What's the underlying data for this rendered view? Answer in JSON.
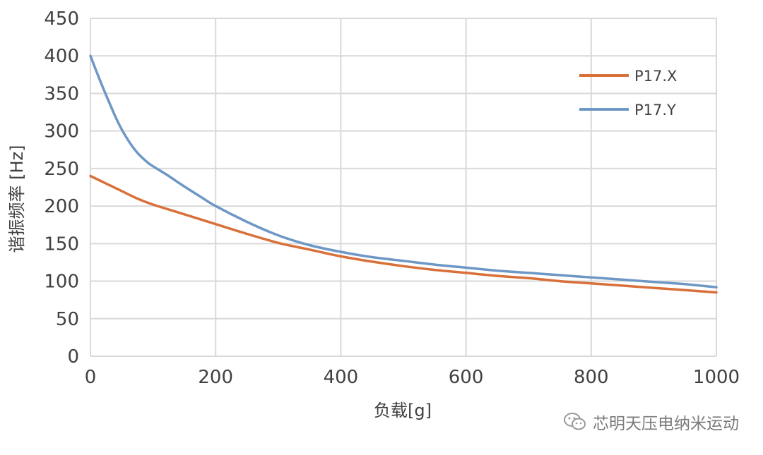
{
  "chart_data": {
    "type": "line",
    "xlabel": "负载[g]",
    "ylabel": "谐振频率 [Hz]",
    "xlim": [
      0,
      1000
    ],
    "ylim": [
      0,
      450
    ],
    "xticks": [
      0,
      200,
      400,
      600,
      800,
      1000
    ],
    "yticks": [
      0,
      50,
      100,
      150,
      200,
      250,
      300,
      350,
      400,
      450
    ],
    "grid": true,
    "legend_position": "top-right",
    "series": [
      {
        "name": "P17.X",
        "color": "#d9703a",
        "points": [
          [
            0,
            240
          ],
          [
            25,
            230
          ],
          [
            50,
            220
          ],
          [
            75,
            210
          ],
          [
            100,
            202
          ],
          [
            150,
            189
          ],
          [
            200,
            176
          ],
          [
            250,
            163
          ],
          [
            300,
            151
          ],
          [
            350,
            142
          ],
          [
            400,
            133
          ],
          [
            450,
            126
          ],
          [
            500,
            120
          ],
          [
            550,
            115
          ],
          [
            600,
            111
          ],
          [
            650,
            107
          ],
          [
            700,
            104
          ],
          [
            750,
            100
          ],
          [
            800,
            97
          ],
          [
            850,
            94
          ],
          [
            900,
            91
          ],
          [
            950,
            88
          ],
          [
            1000,
            85
          ]
        ]
      },
      {
        "name": "P17.Y",
        "color": "#6d97c4",
        "points": [
          [
            0,
            400
          ],
          [
            15,
            368
          ],
          [
            30,
            338
          ],
          [
            45,
            310
          ],
          [
            60,
            288
          ],
          [
            75,
            271
          ],
          [
            90,
            259
          ],
          [
            100,
            253
          ],
          [
            125,
            240
          ],
          [
            150,
            226
          ],
          [
            175,
            213
          ],
          [
            200,
            200
          ],
          [
            250,
            179
          ],
          [
            300,
            161
          ],
          [
            350,
            148
          ],
          [
            400,
            139
          ],
          [
            450,
            132
          ],
          [
            500,
            127
          ],
          [
            550,
            122
          ],
          [
            600,
            118
          ],
          [
            650,
            114
          ],
          [
            700,
            111
          ],
          [
            750,
            108
          ],
          [
            800,
            105
          ],
          [
            850,
            102
          ],
          [
            900,
            99
          ],
          [
            950,
            96
          ],
          [
            1000,
            92
          ]
        ]
      }
    ]
  },
  "watermark": {
    "text": "芯明天压电纳米运动",
    "icon": "wechat-icon"
  }
}
